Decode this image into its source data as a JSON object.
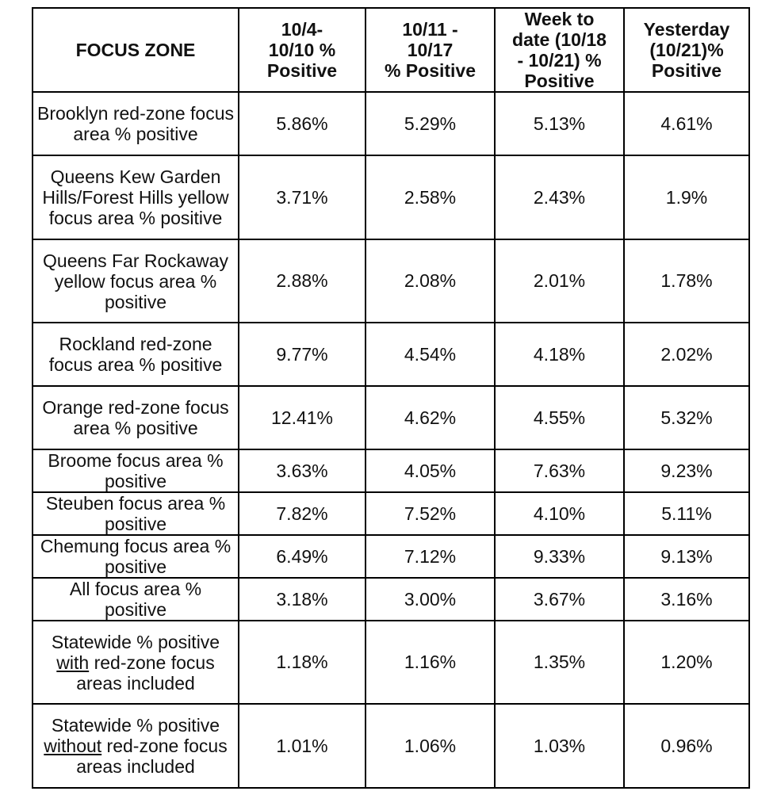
{
  "table": {
    "headers": [
      "FOCUS ZONE",
      "10/4-\n10/10 %\nPositive",
      "10/11 -\n10/17\n% Positive",
      "Week to\ndate (10/18\n- 10/21) %\nPositive",
      "Yesterday\n(10/21)%\nPositive"
    ],
    "rows": [
      {
        "zone": "Brooklyn red-zone focus area % positive",
        "values": [
          "5.86%",
          "5.29%",
          "5.13%",
          "4.61%"
        ]
      },
      {
        "zone": "Queens Kew Garden Hills/Forest Hills yellow focus area % positive",
        "values": [
          "3.71%",
          "2.58%",
          "2.43%",
          "1.9%"
        ]
      },
      {
        "zone": "Queens Far Rockaway yellow focus area % positive",
        "values": [
          "2.88%",
          "2.08%",
          "2.01%",
          "1.78%"
        ]
      },
      {
        "zone": "Rockland red-zone focus area % positive",
        "values": [
          "9.77%",
          "4.54%",
          "4.18%",
          "2.02%"
        ]
      },
      {
        "zone": "Orange red-zone focus area % positive",
        "values": [
          "12.41%",
          "4.62%",
          "4.55%",
          "5.32%"
        ]
      },
      {
        "zone": "Broome focus area % positive",
        "values": [
          "3.63%",
          "4.05%",
          "7.63%",
          "9.23%"
        ]
      },
      {
        "zone": "Steuben focus area % positive",
        "values": [
          "7.82%",
          "7.52%",
          "4.10%",
          "5.11%"
        ]
      },
      {
        "zone": "Chemung focus area % positive",
        "values": [
          "6.49%",
          "7.12%",
          "9.33%",
          "9.13%"
        ]
      },
      {
        "zone": "All focus area % positive",
        "values": [
          "3.18%",
          "3.00%",
          "3.67%",
          "3.16%"
        ]
      },
      {
        "zone_parts": [
          "Statewide % positive ",
          "with",
          " red-zone focus areas included"
        ],
        "values": [
          "1.18%",
          "1.16%",
          "1.35%",
          "1.20%"
        ]
      },
      {
        "zone_parts": [
          "Statewide % positive ",
          "without",
          " red-zone focus areas included"
        ],
        "values": [
          "1.01%",
          "1.06%",
          "1.03%",
          "0.96%"
        ]
      }
    ]
  }
}
